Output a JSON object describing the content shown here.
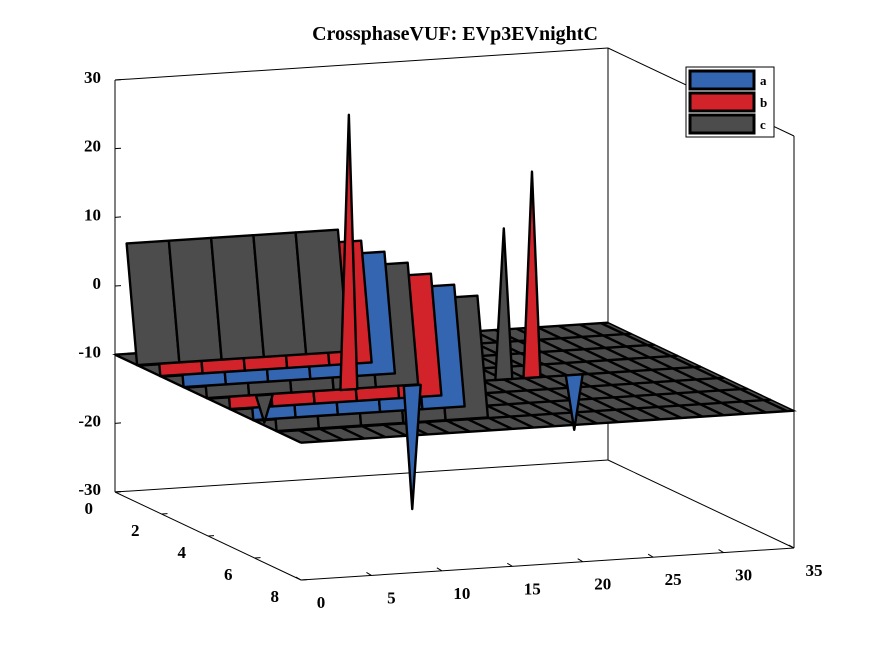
{
  "chart_data": {
    "type": "3d-waterfall",
    "title": "CrossphaseVUF: EVp3EVnightC",
    "xlabel": "",
    "ylabel": "",
    "zlabel": "",
    "x_ticks": [
      "0",
      "5",
      "10",
      "15",
      "20",
      "25",
      "30",
      "35"
    ],
    "y_ticks": [
      "0",
      "2",
      "4",
      "6",
      "8"
    ],
    "z_ticks": [
      "30",
      "20",
      "10",
      "0",
      "-10",
      "-20",
      "-30"
    ],
    "xlim": [
      0,
      35
    ],
    "ylim": [
      0,
      8
    ],
    "zlim": [
      -30,
      30
    ],
    "legend": {
      "position": "top-right",
      "entries": [
        "a",
        "b",
        "c"
      ]
    },
    "series": [
      {
        "name": "a",
        "color": "#3465b0",
        "rows": [
          2.5,
          5.5
        ],
        "peaks": [
          {
            "x": 14.5,
            "z": -28
          },
          {
            "x": 26,
            "z": -18
          }
        ]
      },
      {
        "name": "b",
        "color": "#d2232a",
        "rows": [
          1.5,
          4.5
        ],
        "peaks": [
          {
            "x": 10,
            "z": 30
          },
          {
            "x": 23,
            "z": 20
          }
        ]
      },
      {
        "name": "c",
        "color": "#4c4c4c",
        "rows": [
          0.5,
          3.5,
          6.5
        ],
        "peaks": [
          {
            "x": 21,
            "z": 12
          },
          {
            "x": 4,
            "z": -14
          }
        ]
      }
    ],
    "grid": false
  }
}
